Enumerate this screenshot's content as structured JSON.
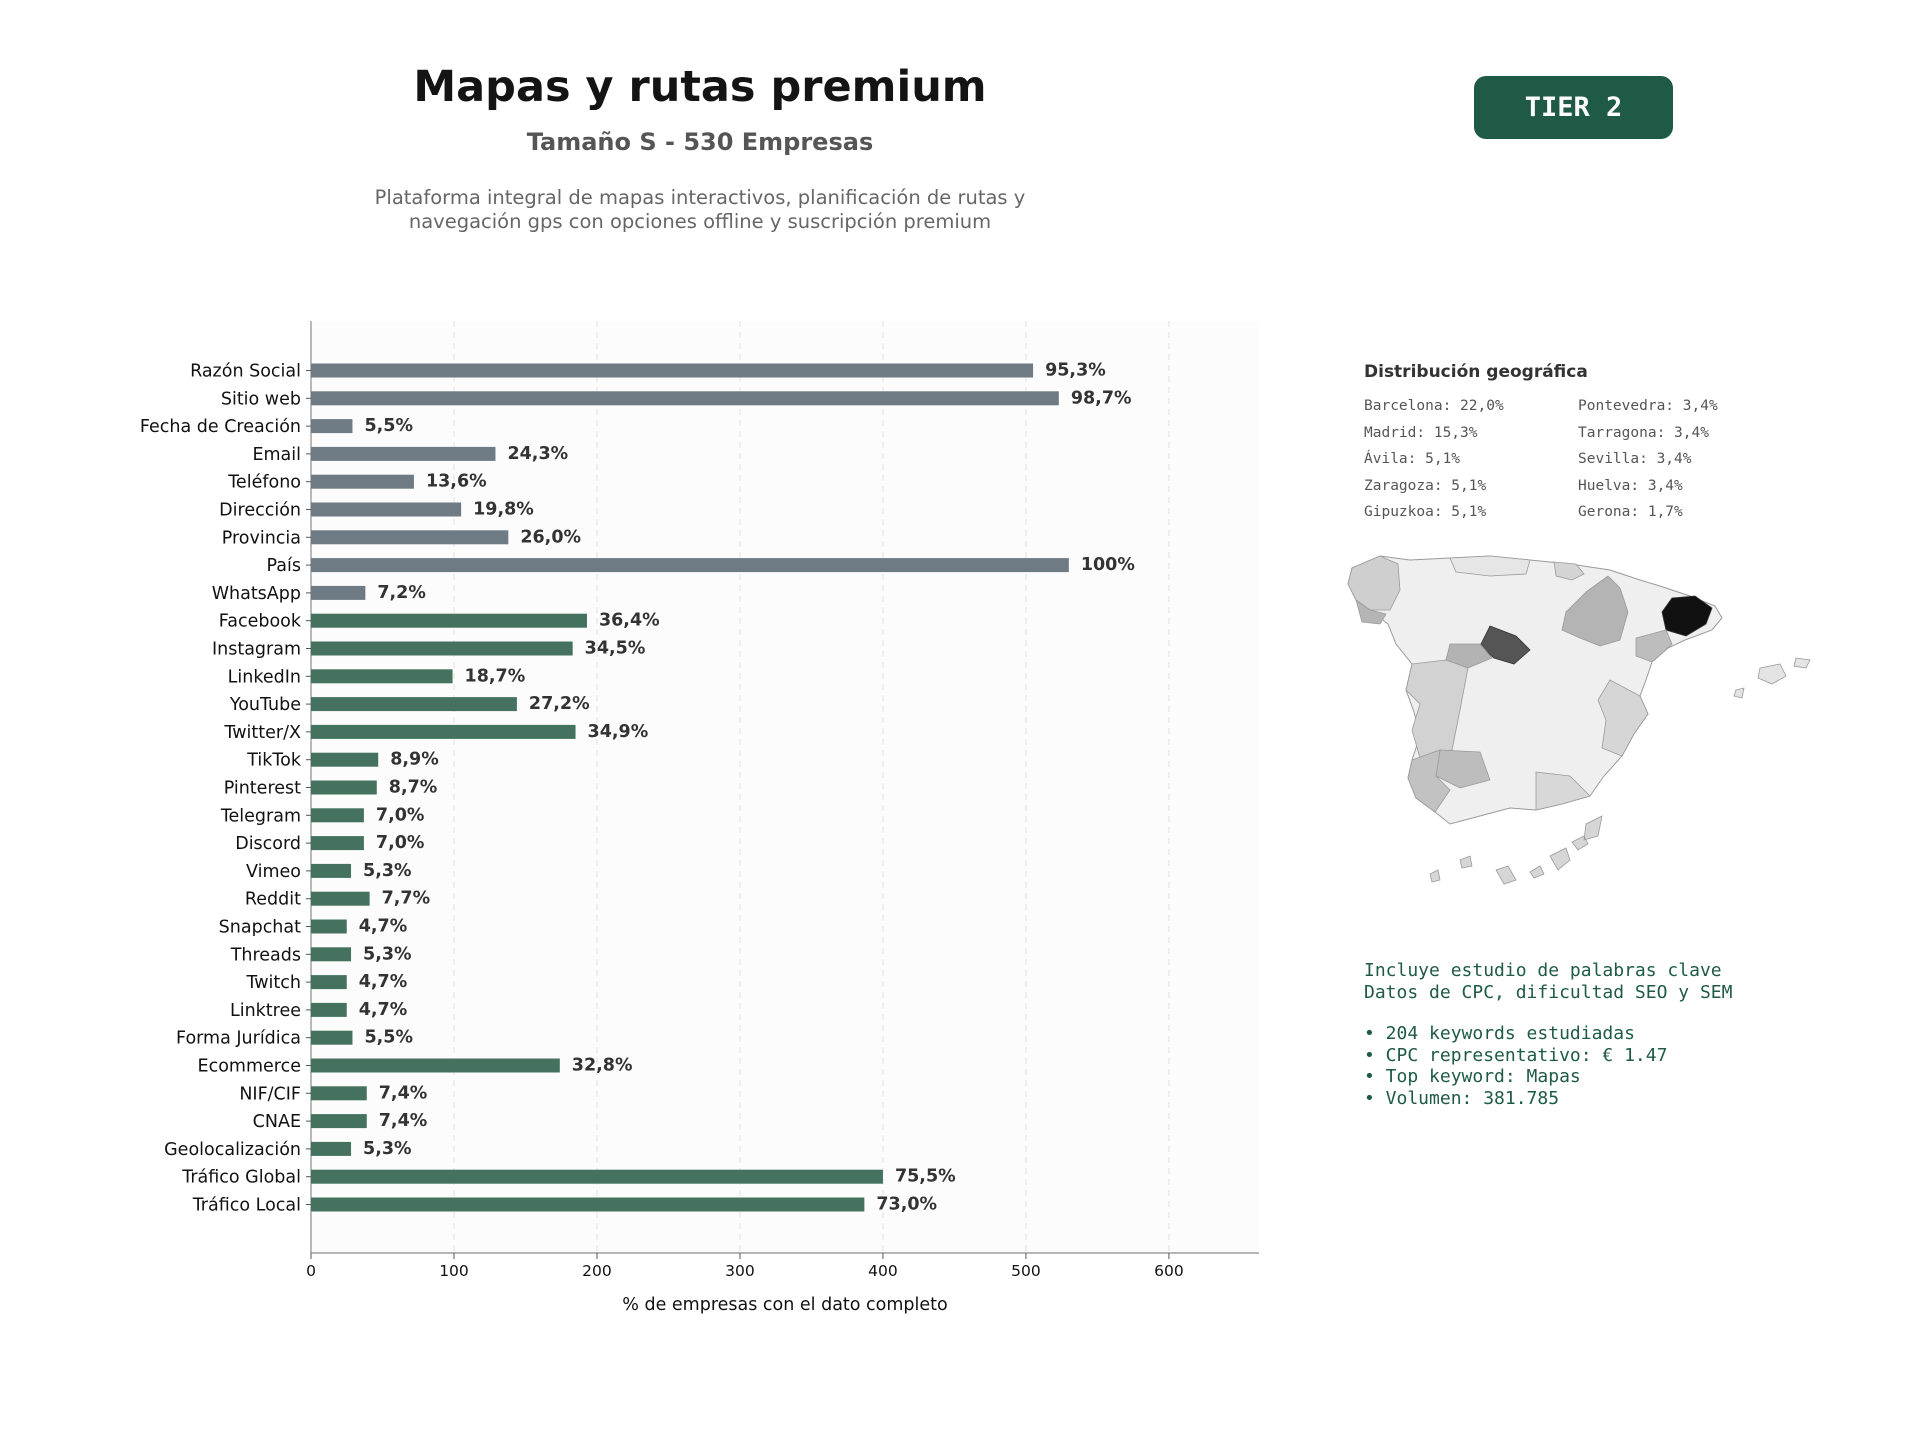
{
  "header": {
    "title": "Mapas y rutas premium",
    "subtitle": "Tamaño S - 530 Empresas",
    "description_line1": "Plataforma integral de mapas interactivos, planificación de rutas y",
    "description_line2": "navegación gps con opciones offline y suscripción premium",
    "tier_badge": "TIER 2"
  },
  "colors": {
    "basic_bar": "#6e7a84",
    "social_bar": "#44725f",
    "accent": "#1e5a46",
    "map_highest": "#111111"
  },
  "chart_data": {
    "type": "bar",
    "orientation": "horizontal",
    "xlabel": "% de empresas con el dato completo",
    "xlim": [
      0,
      663
    ],
    "xticks": [
      0,
      100,
      200,
      300,
      400,
      500,
      600
    ],
    "grid": true,
    "categories": [
      "Razón Social",
      "Sitio web",
      "Fecha de Creación",
      "Email",
      "Teléfono",
      "Dirección",
      "Provincia",
      "País",
      "WhatsApp",
      "Facebook",
      "Instagram",
      "LinkedIn",
      "YouTube",
      "Twitter/X",
      "TikTok",
      "Pinterest",
      "Telegram",
      "Discord",
      "Vimeo",
      "Reddit",
      "Snapchat",
      "Threads",
      "Twitch",
      "Linktree",
      "Forma Jurídica",
      "Ecommerce",
      "NIF/CIF",
      "CNAE",
      "Geolocalización",
      "Tráfico Global",
      "Tráfico Local"
    ],
    "values": [
      505,
      523,
      29,
      129,
      72,
      105,
      138,
      530,
      38,
      193,
      183,
      99,
      144,
      185,
      47,
      46,
      37,
      37,
      28,
      41,
      25,
      28,
      25,
      25,
      29,
      174,
      39,
      39,
      28,
      400,
      387
    ],
    "labels": [
      "95,3%",
      "98,7%",
      "5,5%",
      "24,3%",
      "13,6%",
      "19,8%",
      "26,0%",
      "100%",
      "7,2%",
      "36,4%",
      "34,5%",
      "18,7%",
      "27,2%",
      "34,9%",
      "8,9%",
      "8,7%",
      "7,0%",
      "7,0%",
      "5,3%",
      "7,7%",
      "4,7%",
      "5,3%",
      "4,7%",
      "4,7%",
      "5,5%",
      "32,8%",
      "7,4%",
      "7,4%",
      "5,3%",
      "75,5%",
      "73,0%"
    ],
    "groups": [
      "basic",
      "basic",
      "basic",
      "basic",
      "basic",
      "basic",
      "basic",
      "basic",
      "basic",
      "social",
      "social",
      "social",
      "social",
      "social",
      "social",
      "social",
      "social",
      "social",
      "social",
      "social",
      "social",
      "social",
      "social",
      "social",
      "social",
      "social",
      "social",
      "social",
      "social",
      "social",
      "social"
    ]
  },
  "geo": {
    "title": "Distribución geográfica",
    "left_column": [
      "Barcelona: 22,0%",
      "Madrid: 15,3%",
      "Ávila: 5,1%",
      "Zaragoza: 5,1%",
      "Gipuzkoa: 5,1%"
    ],
    "right_column": [
      "Pontevedra: 3,4%",
      "Tarragona: 3,4%",
      "Sevilla: 3,4%",
      "Huelva: 3,4%",
      "Gerona: 1,7%"
    ]
  },
  "keywords": {
    "line1": "Incluye estudio de palabras clave",
    "line2": "Datos de CPC, dificultad SEO y SEM",
    "bullet1": "• 204 keywords estudiadas",
    "bullet2": "• CPC representativo: € 1.47",
    "bullet3": "• Top keyword: Mapas",
    "bullet4": "• Volumen: 381.785"
  }
}
